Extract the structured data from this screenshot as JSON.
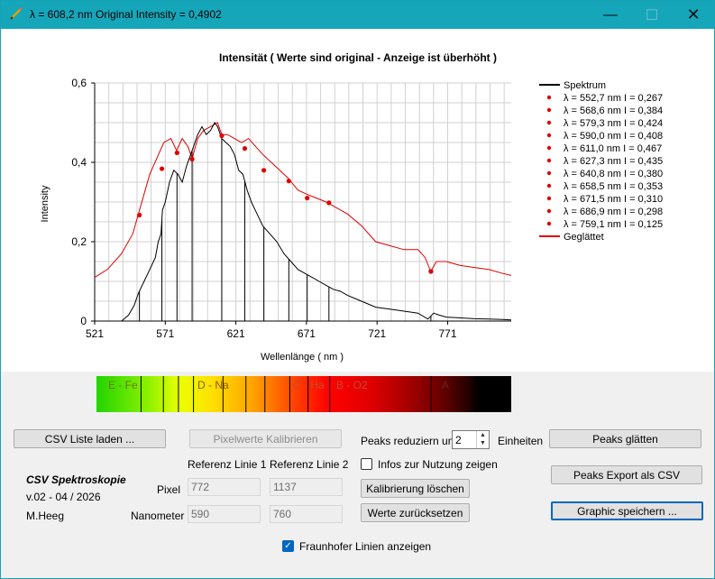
{
  "window": {
    "title": "λ = 608,2 nm  Original Intensity = 0,4902",
    "controls": {
      "minimize": "—",
      "maximize": "☐",
      "close": "✕"
    }
  },
  "chart_data": {
    "type": "line",
    "title": "Intensität ( Werte sind original - Anzeige ist überhöht )",
    "xlabel": "Wellenlänge ( nm )",
    "ylabel": "Intensity",
    "xlim": [
      521,
      816
    ],
    "ylim": [
      0,
      0.6
    ],
    "x_ticks": [
      "521",
      "571",
      "621",
      "671",
      "721",
      "771"
    ],
    "y_ticks": [
      "0",
      "0,2",
      "0,4",
      "0,6"
    ],
    "grid": true,
    "legend_position": "right",
    "series": [
      {
        "name": "Spektrum",
        "color": "#000000",
        "x": [
          521,
          540,
          545,
          549,
          552,
          556,
          560,
          564,
          566,
          568,
          569,
          571,
          574,
          577,
          580,
          583,
          586,
          590,
          594,
          597,
          600,
          603,
          606,
          608,
          611,
          614,
          617,
          620,
          623,
          626,
          629,
          632,
          636,
          640,
          645,
          650,
          655,
          660,
          665,
          670,
          675,
          680,
          685,
          690,
          695,
          700,
          710,
          720,
          730,
          740,
          750,
          757,
          759,
          761,
          765,
          770,
          780,
          790,
          800,
          810,
          816
        ],
        "y": [
          0.0,
          0.0,
          0.015,
          0.04,
          0.07,
          0.1,
          0.13,
          0.16,
          0.2,
          0.22,
          0.28,
          0.3,
          0.35,
          0.38,
          0.37,
          0.35,
          0.39,
          0.43,
          0.47,
          0.49,
          0.47,
          0.48,
          0.5,
          0.49,
          0.46,
          0.45,
          0.44,
          0.42,
          0.38,
          0.37,
          0.33,
          0.3,
          0.27,
          0.24,
          0.22,
          0.2,
          0.17,
          0.15,
          0.13,
          0.12,
          0.11,
          0.1,
          0.09,
          0.08,
          0.075,
          0.065,
          0.05,
          0.035,
          0.03,
          0.025,
          0.02,
          0.005,
          0.012,
          0.02,
          0.015,
          0.01,
          0.008,
          0.006,
          0.005,
          0.004,
          0.003
        ]
      },
      {
        "name": "Peaks",
        "color": "#e00000",
        "points": [
          {
            "x": 552.7,
            "y": 0.267,
            "label": "λ = 552,7 nm    I = 0,267"
          },
          {
            "x": 568.6,
            "y": 0.384,
            "label": "λ = 568,6 nm    I = 0,384"
          },
          {
            "x": 579.3,
            "y": 0.424,
            "label": "λ = 579,3 nm    I = 0,424"
          },
          {
            "x": 590.0,
            "y": 0.408,
            "label": "λ = 590,0 nm    I = 0,408"
          },
          {
            "x": 611.0,
            "y": 0.467,
            "label": "λ = 611,0 nm    I = 0,467"
          },
          {
            "x": 627.3,
            "y": 0.435,
            "label": "λ = 627,3 nm    I = 0,435"
          },
          {
            "x": 640.8,
            "y": 0.38,
            "label": "λ = 640,8 nm    I = 0,380"
          },
          {
            "x": 658.5,
            "y": 0.353,
            "label": "λ = 658,5 nm    I = 0,353"
          },
          {
            "x": 671.5,
            "y": 0.31,
            "label": "λ = 671,5 nm    I = 0,310"
          },
          {
            "x": 686.9,
            "y": 0.298,
            "label": "λ = 686,9 nm    I = 0,298"
          },
          {
            "x": 759.1,
            "y": 0.125,
            "label": "λ = 759,1 nm    I = 0,125"
          }
        ]
      },
      {
        "name": "Geglättet",
        "color": "#e00000",
        "x": [
          521,
          530,
          540,
          548,
          552,
          556,
          560,
          565,
          570,
          575,
          579,
          583,
          587,
          590,
          594,
          598,
          603,
          608,
          611,
          615,
          620,
          625,
          630,
          635,
          640,
          646,
          652,
          658,
          665,
          671,
          678,
          685,
          690,
          700,
          710,
          720,
          730,
          740,
          750,
          755,
          759,
          763,
          770,
          780,
          790,
          800,
          810,
          816
        ],
        "y": [
          0.11,
          0.13,
          0.17,
          0.22,
          0.27,
          0.32,
          0.37,
          0.41,
          0.45,
          0.46,
          0.43,
          0.46,
          0.44,
          0.41,
          0.46,
          0.48,
          0.49,
          0.5,
          0.47,
          0.47,
          0.46,
          0.45,
          0.46,
          0.44,
          0.42,
          0.4,
          0.38,
          0.36,
          0.33,
          0.32,
          0.31,
          0.3,
          0.29,
          0.27,
          0.24,
          0.2,
          0.19,
          0.18,
          0.18,
          0.16,
          0.125,
          0.15,
          0.15,
          0.14,
          0.135,
          0.13,
          0.12,
          0.115
        ]
      }
    ],
    "fraunhofer_lines_nm": [
      552.7,
      568.6,
      579.3,
      590.0,
      611.0,
      627.3,
      640.8,
      658.5,
      671.5,
      686.9,
      759.1
    ]
  },
  "spectrum_bar": {
    "labels": [
      "E - Fe",
      "D - Na",
      "C - Ha",
      "B - O2",
      "A"
    ]
  },
  "buttons": {
    "csv_load": "CSV Liste laden ...",
    "calibrate": "Pixelwerte Kalibrieren",
    "peaks_smooth": "Peaks glätten",
    "peaks_export": "Peaks Export als CSV",
    "graphic_save": "Graphic speichern ...",
    "calib_delete": "Kalibrierung löschen",
    "values_reset": "Werte zurücksetzen"
  },
  "peaks_reduce": {
    "label": "Peaks reduziern um",
    "value": "2",
    "unit": "Einheiten"
  },
  "info_checkbox": {
    "label": "Infos zur Nutzung zeigen",
    "checked": false
  },
  "fraunhofer_checkbox": {
    "label": "Fraunhofer Linien anzeigen",
    "checked": true
  },
  "calibration": {
    "ref1_header": "Referenz Linie 1",
    "ref2_header": "Referenz Linie 2",
    "pixel_label": "Pixel",
    "nm_label": "Nanometer",
    "pixel1": "772",
    "pixel2": "1137",
    "nm1": "590",
    "nm2": "760"
  },
  "brand": {
    "name": "CSV Spektroskopie",
    "version": "v.02 - 04 / 2026",
    "author": "M.Heeg"
  }
}
